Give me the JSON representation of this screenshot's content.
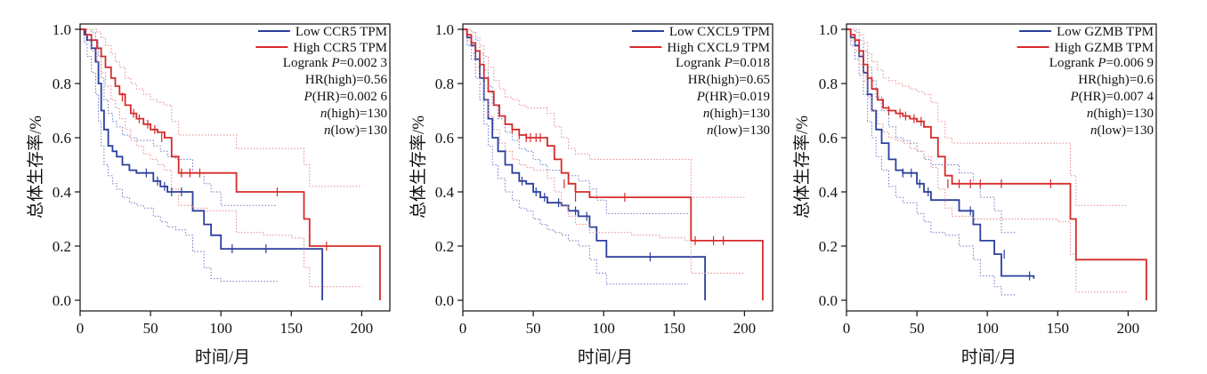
{
  "chart_data": [
    {
      "type": "line",
      "subtype": "kaplan-meier",
      "xlabel": "时间/月",
      "ylabel": "总体生存率/%",
      "xlim": [
        0,
        220
      ],
      "ylim": [
        0,
        1.0
      ],
      "xticks": [
        "0",
        "50",
        "100",
        "150",
        "200"
      ],
      "yticks": [
        "0.0",
        "0.2",
        "0.4",
        "0.6",
        "0.8",
        "1.0"
      ],
      "grid": false,
      "legend_position": "top-right",
      "series": [
        {
          "name": "Low CCR5 TPM",
          "color": "#2b3f9e",
          "x": [
            0,
            3,
            5,
            8,
            11,
            13,
            15,
            17,
            20,
            23,
            26,
            30,
            35,
            40,
            45,
            52,
            57,
            62,
            68,
            75,
            80,
            88,
            93,
            100,
            110,
            140,
            160,
            172,
            172
          ],
          "y": [
            1.0,
            0.98,
            0.96,
            0.93,
            0.88,
            0.8,
            0.7,
            0.63,
            0.57,
            0.55,
            0.53,
            0.5,
            0.48,
            0.47,
            0.47,
            0.44,
            0.42,
            0.4,
            0.4,
            0.4,
            0.33,
            0.28,
            0.24,
            0.19,
            0.19,
            0.19,
            0.19,
            0.19,
            0.0
          ],
          "ci_lower": [
            1.0,
            0.95,
            0.9,
            0.84,
            0.76,
            0.66,
            0.57,
            0.5,
            0.46,
            0.43,
            0.41,
            0.38,
            0.36,
            0.35,
            0.34,
            0.31,
            0.29,
            0.27,
            0.26,
            0.24,
            0.18,
            0.12,
            0.08,
            0.07,
            0.07,
            0.07,
            null,
            null,
            null
          ],
          "ci_upper": [
            1.0,
            1.0,
            1.0,
            0.99,
            0.96,
            0.9,
            0.82,
            0.74,
            0.69,
            0.66,
            0.64,
            0.61,
            0.6,
            0.59,
            0.59,
            0.57,
            0.55,
            0.53,
            0.52,
            0.52,
            0.47,
            0.43,
            0.4,
            0.35,
            0.35,
            0.35,
            null,
            null,
            null
          ],
          "censor_x": [
            47,
            55,
            60,
            65,
            72,
            108,
            132
          ],
          "censor_y": [
            0.47,
            0.44,
            0.42,
            0.4,
            0.4,
            0.19,
            0.19
          ]
        },
        {
          "name": "High CCR5 TPM",
          "color": "#d62b2b",
          "x": [
            0,
            4,
            8,
            12,
            15,
            18,
            22,
            25,
            28,
            32,
            36,
            40,
            45,
            50,
            55,
            60,
            65,
            70,
            80,
            90,
            100,
            111,
            130,
            150,
            159,
            163,
            175,
            200,
            213,
            213
          ],
          "y": [
            1.0,
            0.98,
            0.96,
            0.93,
            0.9,
            0.86,
            0.82,
            0.79,
            0.76,
            0.72,
            0.69,
            0.67,
            0.65,
            0.63,
            0.62,
            0.6,
            0.53,
            0.47,
            0.47,
            0.47,
            0.47,
            0.4,
            0.4,
            0.4,
            0.3,
            0.2,
            0.2,
            0.2,
            0.2,
            0.0
          ],
          "ci_lower": [
            1.0,
            0.96,
            0.92,
            0.88,
            0.84,
            0.79,
            0.74,
            0.71,
            0.67,
            0.63,
            0.59,
            0.57,
            0.54,
            0.52,
            0.5,
            0.48,
            0.41,
            0.35,
            0.34,
            0.33,
            0.33,
            0.25,
            0.24,
            0.23,
            0.12,
            0.05,
            0.05,
            0.05,
            null,
            null
          ],
          "ci_upper": [
            1.0,
            1.0,
            1.0,
            0.99,
            0.97,
            0.94,
            0.91,
            0.88,
            0.86,
            0.82,
            0.8,
            0.78,
            0.76,
            0.74,
            0.73,
            0.72,
            0.66,
            0.61,
            0.61,
            0.61,
            0.61,
            0.56,
            0.56,
            0.56,
            0.5,
            0.42,
            0.42,
            0.42,
            null,
            null
          ],
          "censor_x": [
            30,
            38,
            42,
            48,
            53,
            58,
            72,
            78,
            85,
            140,
            175
          ],
          "censor_y": [
            0.75,
            0.69,
            0.67,
            0.65,
            0.63,
            0.6,
            0.47,
            0.47,
            0.47,
            0.4,
            0.2
          ]
        }
      ],
      "annotations": [
        {
          "label": "Logrank ",
          "italic": "P",
          "value": "=0.002 3"
        },
        {
          "label": "HR(high)=0.56",
          "italic": "",
          "value": ""
        },
        {
          "label": "",
          "italic": "P",
          "value": "(HR)=0.002 6"
        },
        {
          "label": "",
          "italic": "n",
          "value": "(high)=130"
        },
        {
          "label": "",
          "italic": "n",
          "value": "(low)=130"
        }
      ]
    },
    {
      "type": "line",
      "subtype": "kaplan-meier",
      "xlabel": "时间/月",
      "ylabel": "总体生存率/%",
      "xlim": [
        0,
        220
      ],
      "ylim": [
        0,
        1.0
      ],
      "xticks": [
        "0",
        "50",
        "100",
        "150",
        "200"
      ],
      "yticks": [
        "0.0",
        "0.2",
        "0.4",
        "0.6",
        "0.8",
        "1.0"
      ],
      "grid": false,
      "legend_position": "top-right",
      "series": [
        {
          "name": "Low CXCL9 TPM",
          "color": "#2b3f9e",
          "x": [
            0,
            3,
            6,
            9,
            12,
            15,
            18,
            21,
            25,
            30,
            35,
            40,
            45,
            50,
            55,
            60,
            65,
            70,
            75,
            82,
            90,
            95,
            102,
            130,
            160,
            172,
            172
          ],
          "y": [
            1.0,
            0.97,
            0.94,
            0.89,
            0.82,
            0.74,
            0.67,
            0.6,
            0.55,
            0.5,
            0.47,
            0.44,
            0.43,
            0.4,
            0.38,
            0.36,
            0.36,
            0.35,
            0.33,
            0.31,
            0.27,
            0.22,
            0.16,
            0.16,
            0.16,
            0.16,
            0.0
          ],
          "ci_lower": [
            1.0,
            0.94,
            0.89,
            0.82,
            0.74,
            0.65,
            0.57,
            0.5,
            0.45,
            0.4,
            0.37,
            0.34,
            0.33,
            0.3,
            0.28,
            0.26,
            0.25,
            0.24,
            0.22,
            0.2,
            0.15,
            0.1,
            0.06,
            0.06,
            0.06,
            null,
            null
          ],
          "ci_upper": [
            1.0,
            1.0,
            0.99,
            0.96,
            0.91,
            0.85,
            0.79,
            0.72,
            0.67,
            0.62,
            0.59,
            0.56,
            0.55,
            0.52,
            0.5,
            0.48,
            0.48,
            0.47,
            0.46,
            0.44,
            0.41,
            0.37,
            0.32,
            0.32,
            0.32,
            null,
            null
          ],
          "censor_x": [
            42,
            52,
            58,
            68,
            80,
            88,
            133
          ],
          "censor_y": [
            0.44,
            0.4,
            0.38,
            0.36,
            0.33,
            0.31,
            0.16
          ]
        },
        {
          "name": "High CXCL9 TPM",
          "color": "#d62b2b",
          "x": [
            0,
            3,
            6,
            9,
            12,
            15,
            18,
            22,
            26,
            30,
            35,
            40,
            45,
            50,
            55,
            60,
            65,
            70,
            75,
            80,
            90,
            100,
            120,
            140,
            158,
            162,
            180,
            200,
            213,
            213
          ],
          "y": [
            1.0,
            0.98,
            0.95,
            0.92,
            0.87,
            0.82,
            0.77,
            0.72,
            0.68,
            0.65,
            0.63,
            0.61,
            0.6,
            0.6,
            0.6,
            0.57,
            0.52,
            0.47,
            0.43,
            0.4,
            0.38,
            0.38,
            0.38,
            0.38,
            0.38,
            0.22,
            0.22,
            0.22,
            0.22,
            0.0
          ],
          "ci_lower": [
            1.0,
            0.96,
            0.91,
            0.86,
            0.8,
            0.74,
            0.68,
            0.63,
            0.58,
            0.55,
            0.52,
            0.5,
            0.49,
            0.48,
            0.48,
            0.45,
            0.4,
            0.35,
            0.31,
            0.28,
            0.25,
            0.25,
            0.24,
            0.23,
            0.22,
            0.1,
            0.1,
            0.1,
            null,
            null
          ],
          "ci_upper": [
            1.0,
            1.0,
            0.99,
            0.97,
            0.94,
            0.9,
            0.86,
            0.81,
            0.78,
            0.75,
            0.74,
            0.72,
            0.71,
            0.71,
            0.71,
            0.69,
            0.64,
            0.6,
            0.56,
            0.54,
            0.52,
            0.52,
            0.52,
            0.52,
            0.52,
            0.38,
            0.38,
            0.38,
            null,
            null
          ],
          "censor_x": [
            35,
            40,
            45,
            48,
            52,
            55,
            72,
            80,
            115,
            165,
            178,
            185
          ],
          "censor_y": [
            0.63,
            0.61,
            0.6,
            0.6,
            0.6,
            0.6,
            0.43,
            0.38,
            0.38,
            0.22,
            0.22,
            0.22
          ]
        }
      ],
      "annotations": [
        {
          "label": "Logrank ",
          "italic": "P",
          "value": "=0.018"
        },
        {
          "label": "HR(high)=0.65",
          "italic": "",
          "value": ""
        },
        {
          "label": "",
          "italic": "P",
          "value": "(HR)=0.019"
        },
        {
          "label": "",
          "italic": "n",
          "value": "(high)=130"
        },
        {
          "label": "",
          "italic": "n",
          "value": "(low)=130"
        }
      ]
    },
    {
      "type": "line",
      "subtype": "kaplan-meier",
      "xlabel": "时间/月",
      "ylabel": "总体生存率/%",
      "xlim": [
        0,
        220
      ],
      "ylim": [
        0,
        1.0
      ],
      "xticks": [
        "0",
        "50",
        "100",
        "150",
        "200"
      ],
      "yticks": [
        "0.0",
        "0.2",
        "0.4",
        "0.6",
        "0.8",
        "1.0"
      ],
      "grid": false,
      "legend_position": "top-right",
      "series": [
        {
          "name": "Low GZMB TPM",
          "color": "#2b3f9e",
          "x": [
            0,
            3,
            6,
            9,
            12,
            15,
            18,
            21,
            25,
            30,
            35,
            40,
            45,
            50,
            55,
            60,
            65,
            70,
            80,
            90,
            95,
            105,
            110,
            120,
            133,
            133
          ],
          "y": [
            1.0,
            0.97,
            0.94,
            0.9,
            0.84,
            0.76,
            0.7,
            0.63,
            0.58,
            0.52,
            0.48,
            0.47,
            0.47,
            0.43,
            0.4,
            0.37,
            0.37,
            0.37,
            0.33,
            0.28,
            0.22,
            0.17,
            0.09,
            0.09,
            0.09,
            0.08
          ],
          "ci_lower": [
            1.0,
            0.94,
            0.89,
            0.83,
            0.76,
            0.66,
            0.6,
            0.53,
            0.48,
            0.42,
            0.38,
            0.36,
            0.36,
            0.32,
            0.29,
            0.25,
            0.25,
            0.24,
            0.2,
            0.15,
            0.09,
            0.05,
            0.02,
            0.02,
            null,
            null
          ],
          "ci_upper": [
            1.0,
            1.0,
            0.99,
            0.96,
            0.92,
            0.86,
            0.81,
            0.75,
            0.7,
            0.64,
            0.6,
            0.59,
            0.58,
            0.55,
            0.52,
            0.5,
            0.5,
            0.5,
            0.47,
            0.43,
            0.38,
            0.33,
            0.25,
            0.25,
            null,
            null
          ],
          "censor_x": [
            40,
            46,
            52,
            58,
            88,
            112,
            130
          ],
          "censor_y": [
            0.47,
            0.47,
            0.43,
            0.4,
            0.33,
            0.17,
            0.09
          ]
        },
        {
          "name": "High GZMB TPM",
          "color": "#d62b2b",
          "x": [
            0,
            3,
            6,
            9,
            12,
            15,
            18,
            22,
            26,
            30,
            35,
            40,
            45,
            50,
            55,
            60,
            65,
            70,
            75,
            90,
            110,
            130,
            150,
            159,
            163,
            180,
            200,
            213,
            213
          ],
          "y": [
            1.0,
            0.98,
            0.96,
            0.92,
            0.87,
            0.82,
            0.78,
            0.74,
            0.71,
            0.7,
            0.69,
            0.68,
            0.67,
            0.66,
            0.64,
            0.6,
            0.53,
            0.46,
            0.43,
            0.43,
            0.43,
            0.43,
            0.43,
            0.3,
            0.15,
            0.15,
            0.15,
            0.15,
            0.0
          ],
          "ci_lower": [
            1.0,
            0.96,
            0.92,
            0.87,
            0.81,
            0.75,
            0.7,
            0.65,
            0.62,
            0.6,
            0.59,
            0.58,
            0.56,
            0.55,
            0.53,
            0.49,
            0.41,
            0.34,
            0.31,
            0.3,
            0.3,
            0.3,
            0.29,
            0.17,
            0.03,
            0.03,
            0.03,
            null,
            null
          ],
          "ci_upper": [
            1.0,
            1.0,
            1.0,
            0.98,
            0.95,
            0.91,
            0.88,
            0.85,
            0.82,
            0.81,
            0.8,
            0.79,
            0.78,
            0.77,
            0.76,
            0.73,
            0.66,
            0.6,
            0.58,
            0.58,
            0.58,
            0.58,
            0.58,
            0.46,
            0.35,
            0.35,
            0.35,
            null,
            null
          ],
          "censor_x": [
            30,
            38,
            42,
            48,
            53,
            72,
            80,
            88,
            95,
            110,
            145
          ],
          "censor_y": [
            0.7,
            0.69,
            0.68,
            0.67,
            0.66,
            0.43,
            0.43,
            0.43,
            0.43,
            0.43,
            0.43
          ]
        }
      ],
      "annotations": [
        {
          "label": "Logrank ",
          "italic": "P",
          "value": "=0.006 9"
        },
        {
          "label": "HR(high)=0.6",
          "italic": "",
          "value": ""
        },
        {
          "label": "",
          "italic": "P",
          "value": "(HR)=0.007 4"
        },
        {
          "label": "",
          "italic": "n",
          "value": "(high)=130"
        },
        {
          "label": "",
          "italic": "n",
          "value": "(low)=130"
        }
      ]
    }
  ]
}
